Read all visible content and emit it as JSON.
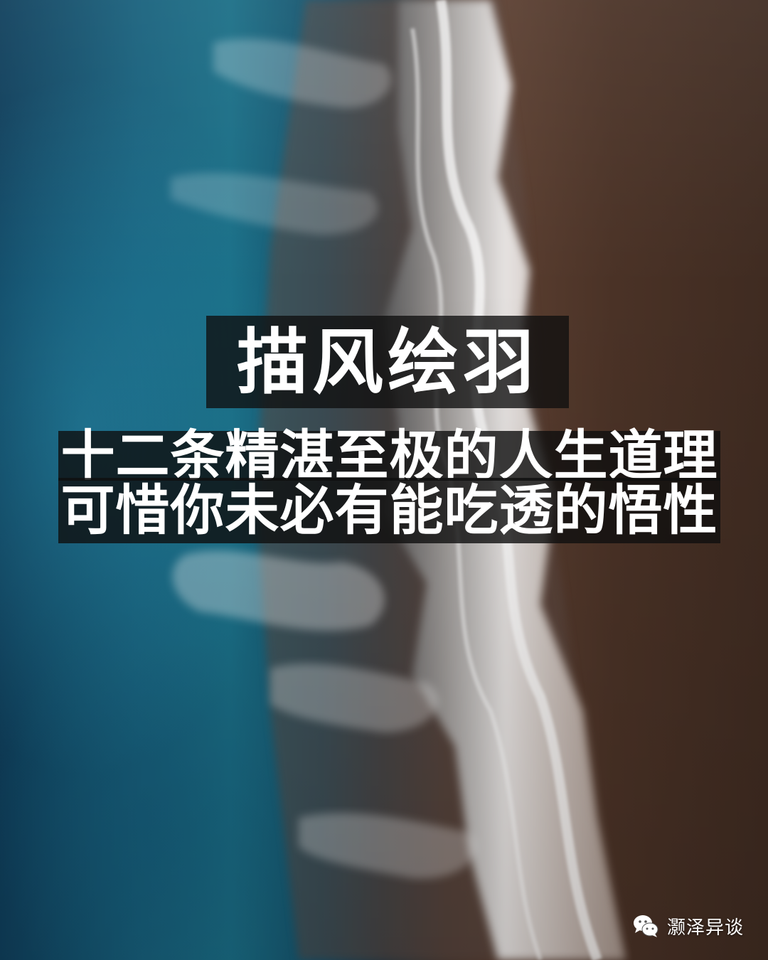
{
  "image": {
    "description_colors": {
      "ocean": "#17607c",
      "surf": "#e9eef0",
      "sand": "#4a3226",
      "text_box": "#0f0f0f",
      "text": "#ffffff"
    }
  },
  "title": "描风绘羽",
  "subtitle": {
    "line1": "十二条精湛至极的人生道理",
    "line2": "可惜你未必有能吃透的悟性"
  },
  "watermark": {
    "icon": "wechat-icon",
    "text": "灏泽异谈"
  }
}
